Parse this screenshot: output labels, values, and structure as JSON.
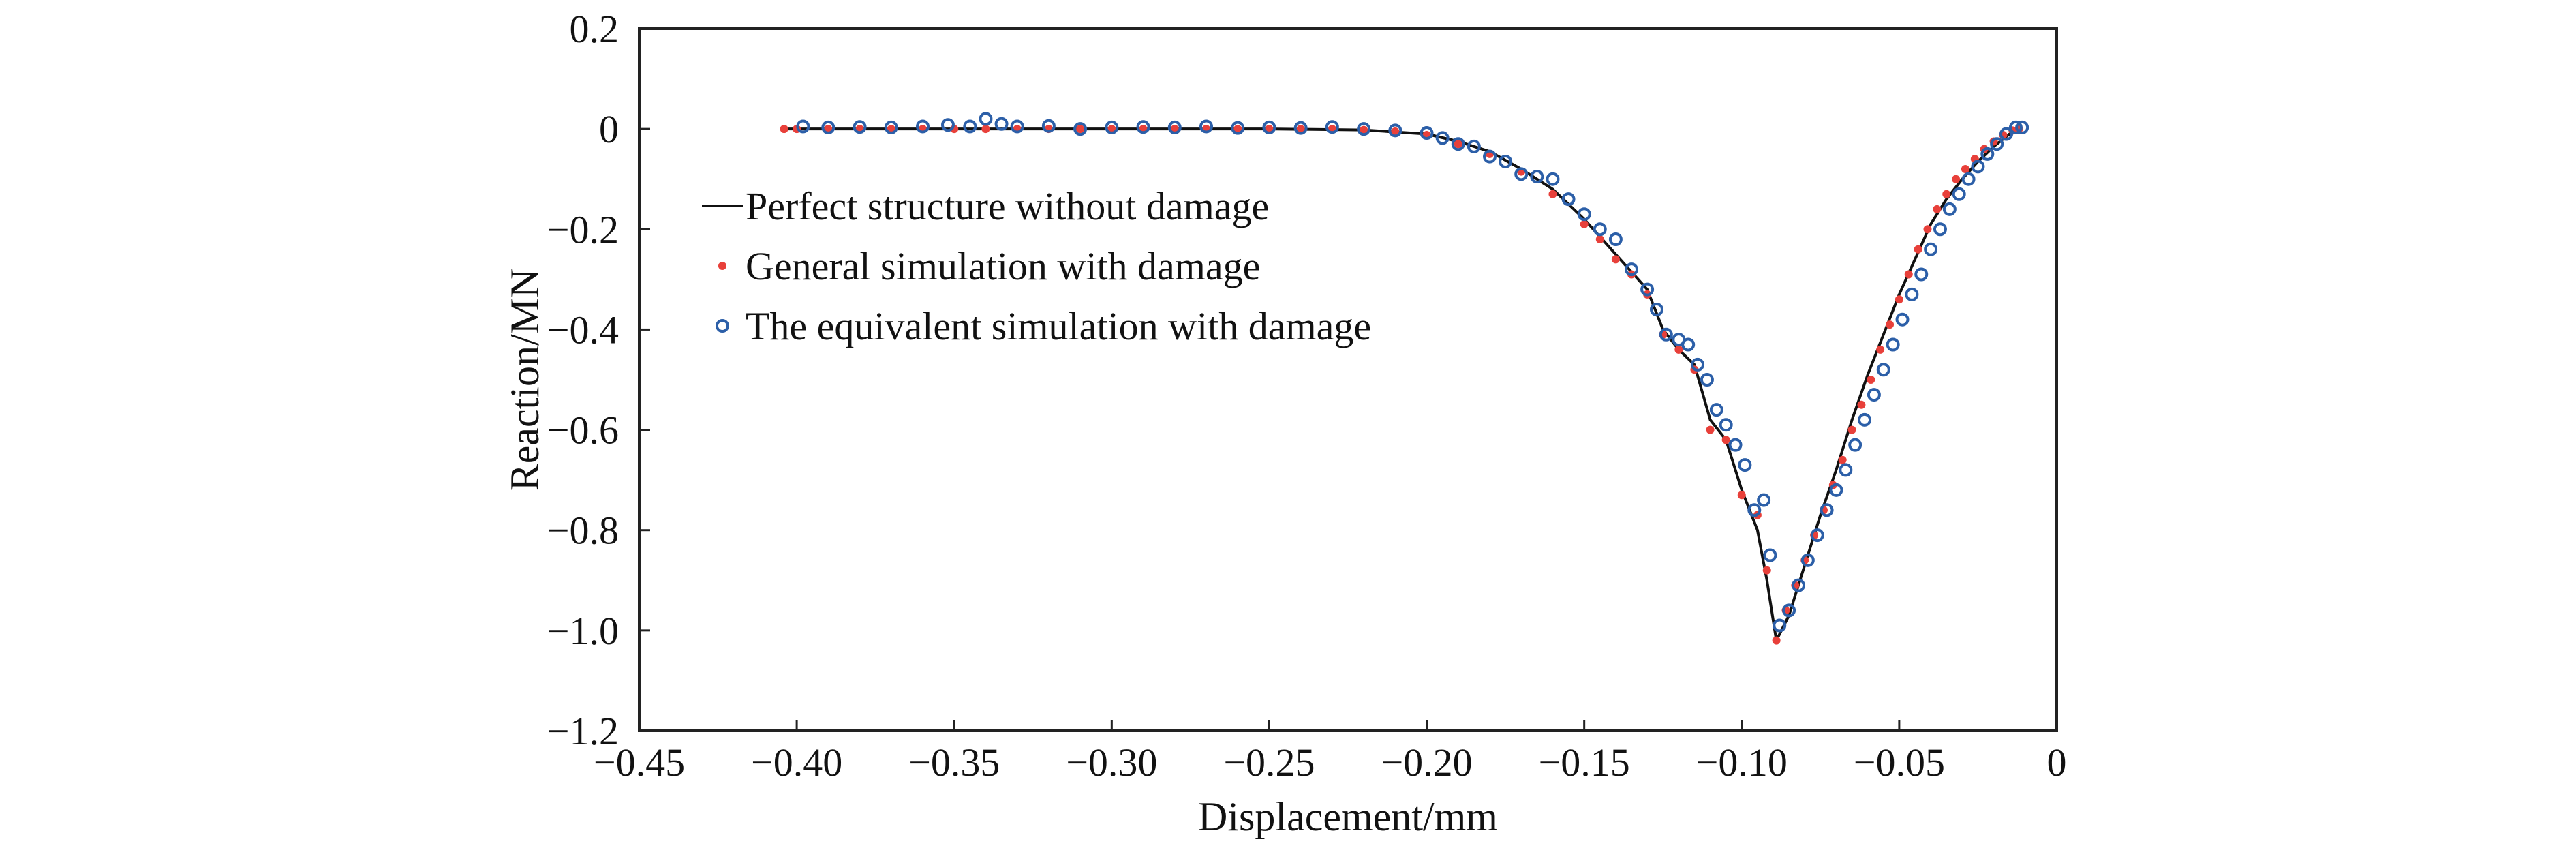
{
  "chart_data": {
    "type": "line",
    "xlabel": "Displacement/mm",
    "ylabel": "Reaction/MN",
    "xlim": [
      -0.45,
      0
    ],
    "ylim": [
      -1.2,
      0.2
    ],
    "x_ticks": [
      {
        "value": -0.45,
        "label": "−0.45"
      },
      {
        "value": -0.4,
        "label": "−0.40"
      },
      {
        "value": -0.35,
        "label": "−0.35"
      },
      {
        "value": -0.3,
        "label": "−0.30"
      },
      {
        "value": -0.25,
        "label": "−0.25"
      },
      {
        "value": -0.2,
        "label": "−0.20"
      },
      {
        "value": -0.15,
        "label": "−0.15"
      },
      {
        "value": -0.1,
        "label": "−0.10"
      },
      {
        "value": -0.05,
        "label": "−0.05"
      },
      {
        "value": 0,
        "label": "0"
      }
    ],
    "y_ticks": [
      {
        "value": 0.2,
        "label": "0.2"
      },
      {
        "value": 0,
        "label": "0"
      },
      {
        "value": -0.2,
        "label": "−0.2"
      },
      {
        "value": -0.4,
        "label": "−0.4"
      },
      {
        "value": -0.6,
        "label": "−0.6"
      },
      {
        "value": -0.8,
        "label": "−0.8"
      },
      {
        "value": -1.0,
        "label": "−1.0"
      },
      {
        "value": -1.2,
        "label": "−1.2"
      }
    ],
    "grid": false,
    "legend_position": "left",
    "series": [
      {
        "name": "Perfect structure without damage",
        "style": "line",
        "color": "#111111",
        "points": [
          [
            -0.405,
            0.0
          ],
          [
            -0.4,
            0.0
          ],
          [
            -0.35,
            0.0
          ],
          [
            -0.3,
            0.0
          ],
          [
            -0.25,
            0.0
          ],
          [
            -0.22,
            -0.002
          ],
          [
            -0.2,
            -0.01
          ],
          [
            -0.19,
            -0.025
          ],
          [
            -0.18,
            -0.045
          ],
          [
            -0.17,
            -0.08
          ],
          [
            -0.16,
            -0.12
          ],
          [
            -0.15,
            -0.18
          ],
          [
            -0.14,
            -0.25
          ],
          [
            -0.13,
            -0.32
          ],
          [
            -0.125,
            -0.4
          ],
          [
            -0.12,
            -0.44
          ],
          [
            -0.115,
            -0.47
          ],
          [
            -0.11,
            -0.58
          ],
          [
            -0.105,
            -0.62
          ],
          [
            -0.1,
            -0.72
          ],
          [
            -0.095,
            -0.8
          ],
          [
            -0.092,
            -0.9
          ],
          [
            -0.089,
            -1.02
          ],
          [
            -0.085,
            -0.97
          ],
          [
            -0.08,
            -0.87
          ],
          [
            -0.075,
            -0.77
          ],
          [
            -0.07,
            -0.68
          ],
          [
            -0.065,
            -0.58
          ],
          [
            -0.06,
            -0.49
          ],
          [
            -0.055,
            -0.41
          ],
          [
            -0.05,
            -0.33
          ],
          [
            -0.045,
            -0.26
          ],
          [
            -0.04,
            -0.19
          ],
          [
            -0.035,
            -0.14
          ],
          [
            -0.03,
            -0.1
          ],
          [
            -0.025,
            -0.065
          ],
          [
            -0.02,
            -0.035
          ],
          [
            -0.015,
            -0.01
          ],
          [
            -0.012,
            0.0
          ]
        ]
      },
      {
        "name": "General simulation with damage",
        "style": "marker-dot",
        "color": "#e8403a",
        "points": [
          [
            -0.404,
            0.0
          ],
          [
            -0.4,
            0.0
          ],
          [
            -0.39,
            0.0
          ],
          [
            -0.38,
            0.0
          ],
          [
            -0.37,
            0.0
          ],
          [
            -0.36,
            0.0
          ],
          [
            -0.35,
            0.0
          ],
          [
            -0.34,
            0.0
          ],
          [
            -0.33,
            0.0
          ],
          [
            -0.32,
            0.0
          ],
          [
            -0.31,
            0.0
          ],
          [
            -0.3,
            0.0
          ],
          [
            -0.29,
            0.0
          ],
          [
            -0.28,
            0.0
          ],
          [
            -0.27,
            0.0
          ],
          [
            -0.26,
            0.0
          ],
          [
            -0.25,
            0.0
          ],
          [
            -0.24,
            0.0
          ],
          [
            -0.23,
            0.0
          ],
          [
            -0.22,
            -0.002
          ],
          [
            -0.21,
            -0.005
          ],
          [
            -0.2,
            -0.012
          ],
          [
            -0.19,
            -0.03
          ],
          [
            -0.18,
            -0.05
          ],
          [
            -0.17,
            -0.085
          ],
          [
            -0.16,
            -0.13
          ],
          [
            -0.15,
            -0.19
          ],
          [
            -0.145,
            -0.22
          ],
          [
            -0.14,
            -0.26
          ],
          [
            -0.135,
            -0.29
          ],
          [
            -0.13,
            -0.33
          ],
          [
            -0.125,
            -0.41
          ],
          [
            -0.12,
            -0.44
          ],
          [
            -0.115,
            -0.48
          ],
          [
            -0.11,
            -0.6
          ],
          [
            -0.105,
            -0.62
          ],
          [
            -0.1,
            -0.73
          ],
          [
            -0.095,
            -0.77
          ],
          [
            -0.092,
            -0.88
          ],
          [
            -0.089,
            -1.02
          ],
          [
            -0.086,
            -0.96
          ],
          [
            -0.083,
            -0.91
          ],
          [
            -0.08,
            -0.86
          ],
          [
            -0.077,
            -0.81
          ],
          [
            -0.074,
            -0.76
          ],
          [
            -0.071,
            -0.71
          ],
          [
            -0.068,
            -0.66
          ],
          [
            -0.065,
            -0.6
          ],
          [
            -0.062,
            -0.55
          ],
          [
            -0.059,
            -0.5
          ],
          [
            -0.056,
            -0.44
          ],
          [
            -0.053,
            -0.39
          ],
          [
            -0.05,
            -0.34
          ],
          [
            -0.047,
            -0.29
          ],
          [
            -0.044,
            -0.24
          ],
          [
            -0.041,
            -0.2
          ],
          [
            -0.038,
            -0.16
          ],
          [
            -0.035,
            -0.13
          ],
          [
            -0.032,
            -0.1
          ],
          [
            -0.029,
            -0.08
          ],
          [
            -0.026,
            -0.06
          ],
          [
            -0.023,
            -0.04
          ],
          [
            -0.02,
            -0.025
          ],
          [
            -0.017,
            -0.012
          ],
          [
            -0.014,
            -0.003
          ],
          [
            -0.012,
            0.0
          ]
        ]
      },
      {
        "name": "The equivalent simulation with damage",
        "style": "marker-circle",
        "color": "#2c5fa8",
        "points": [
          [
            -0.398,
            0.005
          ],
          [
            -0.39,
            0.003
          ],
          [
            -0.38,
            0.004
          ],
          [
            -0.37,
            0.003
          ],
          [
            -0.36,
            0.005
          ],
          [
            -0.352,
            0.008
          ],
          [
            -0.345,
            0.005
          ],
          [
            -0.34,
            0.02
          ],
          [
            -0.335,
            0.01
          ],
          [
            -0.33,
            0.005
          ],
          [
            -0.32,
            0.006
          ],
          [
            -0.31,
            0.0
          ],
          [
            -0.3,
            0.003
          ],
          [
            -0.29,
            0.004
          ],
          [
            -0.28,
            0.003
          ],
          [
            -0.27,
            0.005
          ],
          [
            -0.26,
            0.002
          ],
          [
            -0.25,
            0.003
          ],
          [
            -0.24,
            0.002
          ],
          [
            -0.23,
            0.004
          ],
          [
            -0.22,
            0.0
          ],
          [
            -0.21,
            -0.003
          ],
          [
            -0.2,
            -0.008
          ],
          [
            -0.195,
            -0.018
          ],
          [
            -0.19,
            -0.03
          ],
          [
            -0.185,
            -0.035
          ],
          [
            -0.18,
            -0.055
          ],
          [
            -0.175,
            -0.065
          ],
          [
            -0.17,
            -0.09
          ],
          [
            -0.165,
            -0.095
          ],
          [
            -0.16,
            -0.1
          ],
          [
            -0.155,
            -0.14
          ],
          [
            -0.15,
            -0.17
          ],
          [
            -0.145,
            -0.2
          ],
          [
            -0.14,
            -0.22
          ],
          [
            -0.135,
            -0.28
          ],
          [
            -0.13,
            -0.32
          ],
          [
            -0.127,
            -0.36
          ],
          [
            -0.124,
            -0.41
          ],
          [
            -0.12,
            -0.42
          ],
          [
            -0.117,
            -0.43
          ],
          [
            -0.114,
            -0.47
          ],
          [
            -0.111,
            -0.5
          ],
          [
            -0.108,
            -0.56
          ],
          [
            -0.105,
            -0.59
          ],
          [
            -0.102,
            -0.63
          ],
          [
            -0.099,
            -0.67
          ],
          [
            -0.096,
            -0.76
          ],
          [
            -0.093,
            -0.74
          ],
          [
            -0.091,
            -0.85
          ],
          [
            -0.088,
            -0.99
          ],
          [
            -0.085,
            -0.96
          ],
          [
            -0.082,
            -0.91
          ],
          [
            -0.079,
            -0.86
          ],
          [
            -0.076,
            -0.81
          ],
          [
            -0.073,
            -0.76
          ],
          [
            -0.07,
            -0.72
          ],
          [
            -0.067,
            -0.68
          ],
          [
            -0.064,
            -0.63
          ],
          [
            -0.061,
            -0.58
          ],
          [
            -0.058,
            -0.53
          ],
          [
            -0.055,
            -0.48
          ],
          [
            -0.052,
            -0.43
          ],
          [
            -0.049,
            -0.38
          ],
          [
            -0.046,
            -0.33
          ],
          [
            -0.043,
            -0.29
          ],
          [
            -0.04,
            -0.24
          ],
          [
            -0.037,
            -0.2
          ],
          [
            -0.034,
            -0.16
          ],
          [
            -0.031,
            -0.13
          ],
          [
            -0.028,
            -0.1
          ],
          [
            -0.025,
            -0.075
          ],
          [
            -0.022,
            -0.05
          ],
          [
            -0.019,
            -0.03
          ],
          [
            -0.016,
            -0.01
          ],
          [
            -0.013,
            0.003
          ],
          [
            -0.011,
            0.003
          ]
        ]
      }
    ]
  }
}
